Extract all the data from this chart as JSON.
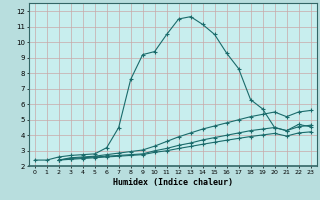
{
  "title": "",
  "xlabel": "Humidex (Indice chaleur)",
  "ylabel": "",
  "bg_color": "#b8dede",
  "plot_bg_color": "#c8eeee",
  "grid_color_major": "#c8a8a8",
  "line_color": "#1a6b6b",
  "axis_color": "#336666",
  "xlim": [
    -0.5,
    23.5
  ],
  "ylim": [
    2,
    12.5
  ],
  "xtick_labels": [
    "0",
    "1",
    "2",
    "3",
    "4",
    "5",
    "6",
    "7",
    "8",
    "9",
    "10",
    "11",
    "12",
    "13",
    "14",
    "15",
    "16",
    "17",
    "18",
    "19",
    "20",
    "21",
    "22",
    "23"
  ],
  "ytick_labels": [
    "2",
    "3",
    "4",
    "5",
    "6",
    "7",
    "8",
    "9",
    "10",
    "11",
    "12"
  ],
  "ytick_vals": [
    2,
    3,
    4,
    5,
    6,
    7,
    8,
    9,
    10,
    11,
    12
  ],
  "xtick_vals": [
    0,
    1,
    2,
    3,
    4,
    5,
    6,
    7,
    8,
    9,
    10,
    11,
    12,
    13,
    14,
    15,
    16,
    17,
    18,
    19,
    20,
    21,
    22,
    23
  ],
  "curve1_x": [
    0,
    1,
    2,
    3,
    4,
    5,
    6,
    7,
    8,
    9,
    10,
    11,
    12,
    13,
    14,
    15,
    16,
    17,
    18,
    19,
    20,
    21,
    22,
    23
  ],
  "curve1_y": [
    2.4,
    2.4,
    2.6,
    2.7,
    2.75,
    2.8,
    3.2,
    4.5,
    7.6,
    9.2,
    9.4,
    10.5,
    11.5,
    11.65,
    11.15,
    10.5,
    9.3,
    8.3,
    6.3,
    5.7,
    4.5,
    4.3,
    4.7,
    4.55
  ],
  "curve2_x": [
    2,
    3,
    4,
    5,
    6,
    7,
    8,
    9,
    10,
    11,
    12,
    13,
    14,
    15,
    16,
    17,
    18,
    19,
    20,
    21,
    22,
    23
  ],
  "curve2_y": [
    2.4,
    2.55,
    2.6,
    2.65,
    2.75,
    2.85,
    2.95,
    3.05,
    3.3,
    3.6,
    3.9,
    4.15,
    4.4,
    4.6,
    4.8,
    5.0,
    5.2,
    5.35,
    5.5,
    5.2,
    5.5,
    5.6
  ],
  "curve3_x": [
    2,
    3,
    4,
    5,
    6,
    7,
    8,
    9,
    10,
    11,
    12,
    13,
    14,
    15,
    16,
    17,
    18,
    19,
    20,
    21,
    22,
    23
  ],
  "curve3_y": [
    2.4,
    2.5,
    2.55,
    2.6,
    2.65,
    2.7,
    2.75,
    2.8,
    3.0,
    3.15,
    3.35,
    3.5,
    3.7,
    3.85,
    4.0,
    4.15,
    4.3,
    4.4,
    4.5,
    4.3,
    4.55,
    4.65
  ],
  "curve4_x": [
    2,
    3,
    4,
    5,
    6,
    7,
    8,
    9,
    10,
    11,
    12,
    13,
    14,
    15,
    16,
    17,
    18,
    19,
    20,
    21,
    22,
    23
  ],
  "curve4_y": [
    2.4,
    2.45,
    2.5,
    2.55,
    2.6,
    2.65,
    2.7,
    2.75,
    2.9,
    3.0,
    3.15,
    3.28,
    3.42,
    3.55,
    3.68,
    3.8,
    3.92,
    4.02,
    4.12,
    3.95,
    4.15,
    4.22
  ],
  "marker": "+",
  "markersize": 3,
  "linewidth": 0.8
}
